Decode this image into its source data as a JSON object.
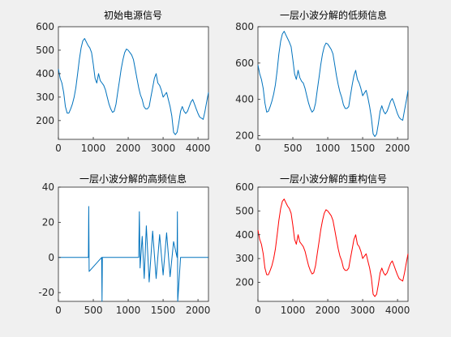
{
  "chart_data": [
    {
      "type": "line",
      "title": "初始电源信号",
      "color": "#0072BD",
      "xlim": [
        0,
        4300
      ],
      "ylim": [
        120,
        600
      ],
      "xticks": [
        0,
        1000,
        2000,
        3000,
        4000
      ],
      "yticks": [
        200,
        300,
        400,
        500,
        600
      ],
      "series": [
        {
          "x": [
            0,
            50,
            100,
            150,
            200,
            250,
            300,
            350,
            400,
            450,
            500,
            550,
            600,
            650,
            700,
            750,
            800,
            850,
            900,
            950,
            1000,
            1050,
            1100,
            1150,
            1200,
            1250,
            1300,
            1350,
            1400,
            1450,
            1500,
            1550,
            1600,
            1650,
            1700,
            1750,
            1800,
            1850,
            1900,
            1950,
            2000,
            2050,
            2100,
            2150,
            2200,
            2250,
            2300,
            2350,
            2400,
            2450,
            2500,
            2550,
            2600,
            2650,
            2700,
            2750,
            2800,
            2850,
            2900,
            2950,
            3000,
            3050,
            3100,
            3150,
            3200,
            3250,
            3300,
            3350,
            3400,
            3450,
            3500,
            3550,
            3600,
            3650,
            3700,
            3750,
            3800,
            3850,
            3900,
            3950,
            4000,
            4050,
            4100,
            4150,
            4200,
            4250,
            4300
          ],
          "y": [
            420,
            380,
            360,
            320,
            260,
            232,
            232,
            250,
            270,
            300,
            340,
            400,
            460,
            510,
            540,
            550,
            535,
            520,
            510,
            490,
            440,
            380,
            360,
            400,
            370,
            360,
            350,
            330,
            300,
            270,
            250,
            235,
            240,
            270,
            320,
            370,
            420,
            460,
            490,
            505,
            500,
            490,
            480,
            460,
            420,
            380,
            340,
            310,
            290,
            260,
            250,
            250,
            260,
            300,
            340,
            380,
            400,
            360,
            350,
            330,
            300,
            310,
            320,
            290,
            260,
            220,
            150,
            140,
            150,
            190,
            240,
            260,
            240,
            230,
            240,
            260,
            280,
            290,
            270,
            250,
            230,
            215,
            210,
            205,
            240,
            280,
            320
          ]
        }
      ]
    },
    {
      "type": "line",
      "title": "一层小波分解的低频信息",
      "color": "#0072BD",
      "xlim": [
        0,
        2150
      ],
      "ylim": [
        180,
        800
      ],
      "xticks": [
        0,
        500,
        1000,
        1500,
        2000
      ],
      "yticks": [
        200,
        400,
        600,
        800
      ],
      "series": [
        {
          "x": [
            0,
            25,
            50,
            75,
            100,
            125,
            150,
            175,
            200,
            225,
            250,
            275,
            300,
            325,
            350,
            375,
            400,
            425,
            450,
            475,
            500,
            525,
            550,
            575,
            600,
            625,
            650,
            675,
            700,
            725,
            750,
            775,
            800,
            825,
            850,
            875,
            900,
            925,
            950,
            975,
            1000,
            1025,
            1050,
            1075,
            1100,
            1125,
            1150,
            1175,
            1200,
            1225,
            1250,
            1275,
            1300,
            1325,
            1350,
            1375,
            1400,
            1425,
            1450,
            1475,
            1500,
            1525,
            1550,
            1575,
            1600,
            1625,
            1650,
            1675,
            1700,
            1725,
            1750,
            1775,
            1800,
            1825,
            1850,
            1875,
            1900,
            1925,
            1950,
            1975,
            2000,
            2025,
            2050,
            2075,
            2100,
            2125,
            2150
          ],
          "y": [
            590,
            540,
            510,
            460,
            380,
            330,
            335,
            360,
            390,
            430,
            480,
            560,
            650,
            720,
            760,
            775,
            755,
            735,
            715,
            690,
            620,
            540,
            510,
            560,
            520,
            500,
            490,
            460,
            420,
            380,
            350,
            330,
            340,
            380,
            450,
            520,
            590,
            650,
            690,
            710,
            705,
            690,
            675,
            650,
            590,
            530,
            480,
            440,
            410,
            370,
            350,
            350,
            360,
            420,
            480,
            530,
            560,
            510,
            490,
            460,
            420,
            435,
            450,
            410,
            360,
            300,
            210,
            195,
            210,
            265,
            335,
            365,
            335,
            320,
            335,
            360,
            390,
            405,
            380,
            350,
            320,
            300,
            290,
            285,
            340,
            390,
            450
          ]
        }
      ]
    },
    {
      "type": "line",
      "title": "一层小波分解的高频信息",
      "color": "#0072BD",
      "xlim": [
        0,
        2150
      ],
      "ylim": [
        -25,
        40
      ],
      "xticks": [
        0,
        500,
        1000,
        1500,
        2000
      ],
      "yticks": [
        -20,
        0,
        20,
        40
      ],
      "series": [
        {
          "x": [
            0,
            430,
            435,
            440,
            620,
            625,
            630,
            1150,
            1160,
            1170,
            1200,
            1230,
            1260,
            1300,
            1350,
            1400,
            1450,
            1500,
            1550,
            1600,
            1650,
            1700,
            1705,
            1710,
            1750,
            2150
          ],
          "y": [
            0,
            0,
            29,
            -8,
            0,
            -25,
            0,
            0,
            26,
            -6,
            12,
            -12,
            18,
            -14,
            15,
            -12,
            13,
            -10,
            14,
            -11,
            9,
            0,
            26,
            -25,
            0,
            0
          ]
        }
      ]
    },
    {
      "type": "line",
      "title": "一层小波分解的重构信号",
      "color": "#FF0000",
      "xlim": [
        0,
        4300
      ],
      "ylim": [
        120,
        600
      ],
      "xticks": [
        0,
        1000,
        2000,
        3000,
        4000
      ],
      "yticks": [
        200,
        300,
        400,
        500,
        600
      ],
      "series": [
        {
          "x": [
            0,
            50,
            100,
            150,
            200,
            250,
            300,
            350,
            400,
            450,
            500,
            550,
            600,
            650,
            700,
            750,
            800,
            850,
            900,
            950,
            1000,
            1050,
            1100,
            1150,
            1200,
            1250,
            1300,
            1350,
            1400,
            1450,
            1500,
            1550,
            1600,
            1650,
            1700,
            1750,
            1800,
            1850,
            1900,
            1950,
            2000,
            2050,
            2100,
            2150,
            2200,
            2250,
            2300,
            2350,
            2400,
            2450,
            2500,
            2550,
            2600,
            2650,
            2700,
            2750,
            2800,
            2850,
            2900,
            2950,
            3000,
            3050,
            3100,
            3150,
            3200,
            3250,
            3300,
            3350,
            3400,
            3450,
            3500,
            3550,
            3600,
            3650,
            3700,
            3750,
            3800,
            3850,
            3900,
            3950,
            4000,
            4050,
            4100,
            4150,
            4200,
            4250,
            4300
          ],
          "y": [
            420,
            380,
            360,
            320,
            260,
            232,
            232,
            250,
            270,
            300,
            340,
            400,
            460,
            510,
            540,
            550,
            535,
            520,
            510,
            490,
            440,
            380,
            360,
            400,
            370,
            360,
            350,
            330,
            300,
            270,
            250,
            235,
            240,
            270,
            320,
            370,
            420,
            460,
            490,
            505,
            500,
            490,
            480,
            460,
            420,
            380,
            340,
            310,
            290,
            260,
            250,
            250,
            260,
            300,
            340,
            380,
            400,
            360,
            350,
            330,
            300,
            310,
            320,
            290,
            260,
            220,
            150,
            140,
            150,
            190,
            240,
            260,
            240,
            230,
            240,
            260,
            280,
            290,
            270,
            250,
            230,
            215,
            210,
            205,
            240,
            280,
            320
          ]
        }
      ]
    }
  ]
}
